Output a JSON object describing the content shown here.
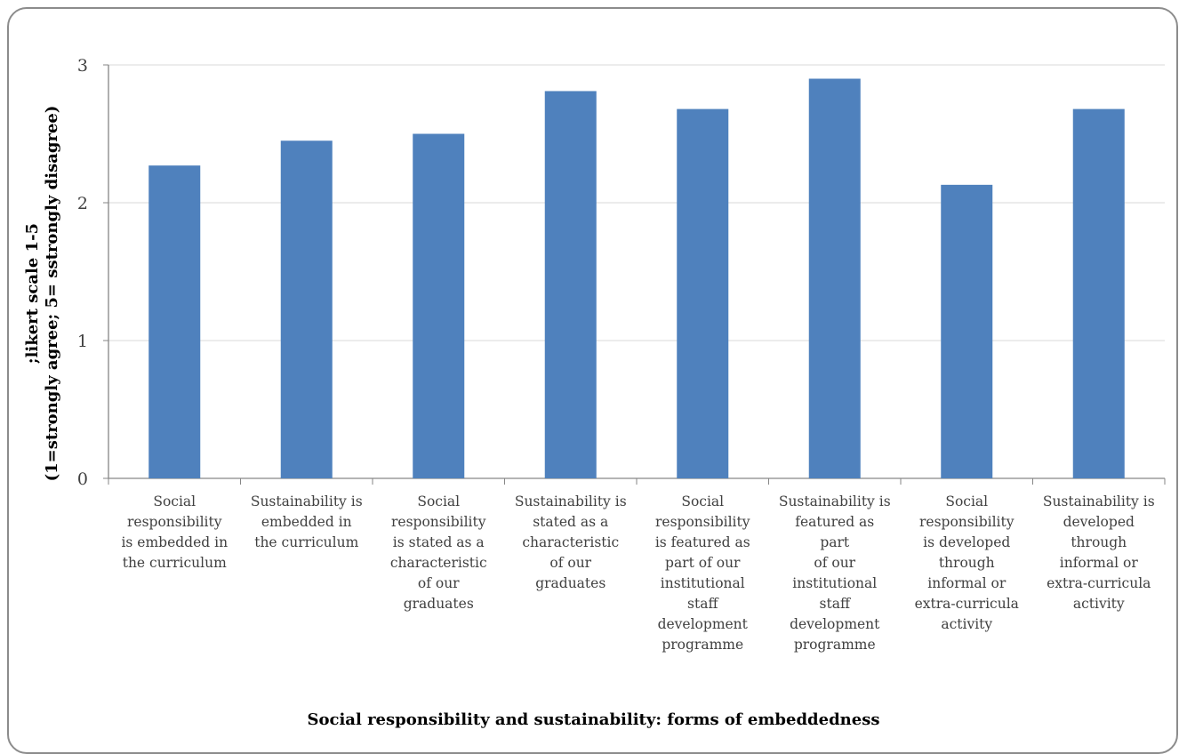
{
  "chart_data": {
    "type": "bar",
    "title": "Social responsibility and sustainability: forms of embeddedness",
    "ylabel_lines": [
      ";likert scale 1-5",
      "(1=strongly agree; 5= sstrongly disagree)"
    ],
    "categories": [
      "Social responsibility is embedded in the curriculum",
      "Sustainability is embedded in the curriculum",
      "Social responsibility is stated as a characteristic of our graduates",
      "Sustainability is stated as a characteristic of our graduates",
      "Social responsibility is featured as part of our institutional staff development programme",
      "Sustainability is featured as part of our institutional staff development programme",
      "Social responsibility is developed through informal or extra-curricula activity",
      "Sustainability is developed through informal or extra-curricula activity"
    ],
    "category_label_lines": [
      [
        "Social",
        "responsibility",
        "is embedded in",
        "the curriculum"
      ],
      [
        "Sustainability is",
        "embedded in",
        "the curriculum"
      ],
      [
        "Social",
        "responsibility",
        "is stated as a",
        "characteristic",
        "of our",
        "graduates"
      ],
      [
        "Sustainability is",
        "stated as a",
        "characteristic",
        "of our",
        "graduates"
      ],
      [
        "Social",
        "responsibility",
        "is featured as",
        "part of our",
        "institutional",
        "staff",
        "development",
        "programme"
      ],
      [
        "Sustainability is",
        "featured as part",
        "of our",
        "institutional",
        "staff",
        "development",
        "programme"
      ],
      [
        "Social",
        "responsibility",
        "is developed",
        "through",
        "informal or",
        "extra-curricula",
        "activity"
      ],
      [
        "Sustainability is",
        "developed",
        "through",
        "informal or",
        "extra-curricula",
        "activity"
      ]
    ],
    "values": [
      2.27,
      2.45,
      2.5,
      2.81,
      2.68,
      2.9,
      2.13,
      2.68
    ],
    "ylim": [
      0,
      3
    ],
    "yticks": [
      "0",
      "1",
      "2",
      "3"
    ],
    "grid": true,
    "legend": "none",
    "colors": {
      "bar": "#4f81bd",
      "grid": "#d9d9d9",
      "axis": "#868686",
      "tick_text": "#404040"
    }
  }
}
